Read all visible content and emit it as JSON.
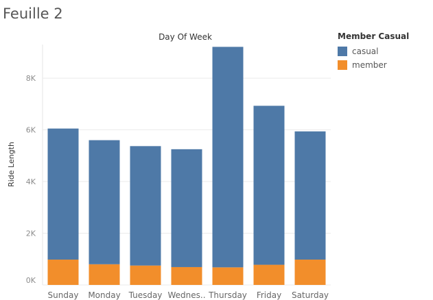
{
  "sheet": {
    "title": "Feuille 2"
  },
  "legend": {
    "title": "Member Casual",
    "items": [
      {
        "label": "casual",
        "color": "#4e79a7"
      },
      {
        "label": "member",
        "color": "#f28e2b"
      }
    ]
  },
  "chart_data": {
    "type": "bar",
    "stacked": true,
    "title": "Day Of Week",
    "xlabel": "",
    "ylabel": "Ride Length",
    "categories": [
      "Sunday",
      "Monday",
      "Tuesday",
      "Wednes..",
      "Thursday",
      "Friday",
      "Saturday"
    ],
    "series": [
      {
        "name": "member",
        "color": "#f28e2b",
        "values": [
          980,
          800,
          750,
          690,
          680,
          780,
          980
        ]
      },
      {
        "name": "casual",
        "color": "#4e79a7",
        "values": [
          5070,
          4800,
          4620,
          4560,
          8530,
          6150,
          4960
        ]
      }
    ],
    "ylim": [
      0,
      9300
    ],
    "yticks": [
      0,
      2000,
      4000,
      6000,
      8000
    ],
    "ytick_labels": [
      "0K",
      "2K",
      "4K",
      "6K",
      "8K"
    ],
    "grid": true,
    "legend_position": "top-right"
  }
}
